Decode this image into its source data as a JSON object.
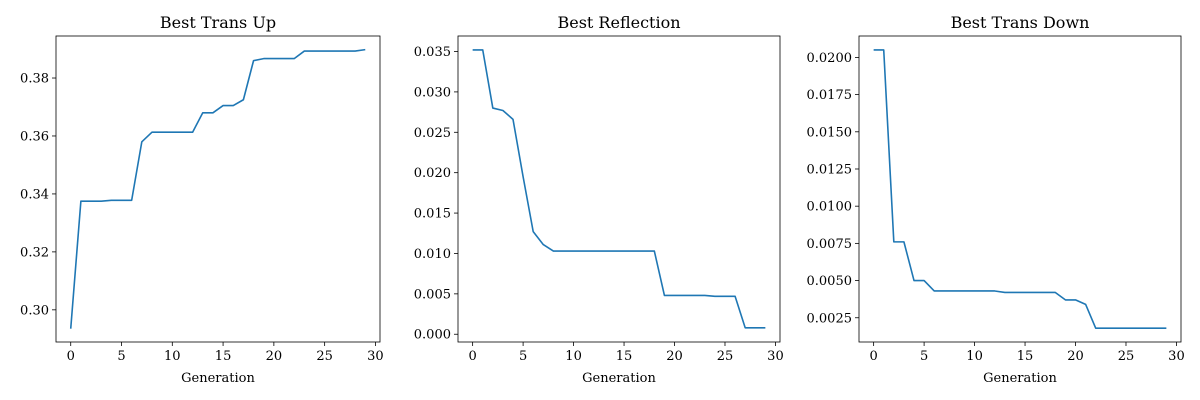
{
  "chart_data": [
    {
      "type": "line",
      "title": "Best Trans Up",
      "xlabel": "Generation",
      "ylabel": "",
      "xlim": [
        -1.45,
        30.45
      ],
      "ylim": [
        0.2889,
        0.3945
      ],
      "xticks": [
        0,
        5,
        10,
        15,
        20,
        25,
        30
      ],
      "xtick_labels": [
        "0",
        "5",
        "10",
        "15",
        "20",
        "25",
        "30"
      ],
      "yticks": [
        0.3,
        0.32,
        0.34,
        0.36,
        0.38
      ],
      "ytick_labels": [
        "0.30",
        "0.32",
        "0.34",
        "0.36",
        "0.38"
      ],
      "grid": false,
      "color": "#1f77b4",
      "series": [
        {
          "x": [
            0,
            1,
            2,
            3,
            4,
            5,
            6,
            7,
            8,
            9,
            10,
            11,
            12,
            13,
            14,
            15,
            16,
            17,
            18,
            19,
            20,
            21,
            22,
            23,
            24,
            25,
            26,
            27,
            28,
            29
          ],
          "values": [
            0.2935,
            0.3375,
            0.3375,
            0.3375,
            0.3378,
            0.3378,
            0.3378,
            0.358,
            0.3613,
            0.3613,
            0.3613,
            0.3613,
            0.3613,
            0.368,
            0.368,
            0.3705,
            0.3705,
            0.3725,
            0.386,
            0.3867,
            0.3867,
            0.3867,
            0.3867,
            0.3893,
            0.3893,
            0.3893,
            0.3893,
            0.3893,
            0.3893,
            0.3898
          ]
        }
      ]
    },
    {
      "type": "line",
      "title": "Best Reflection",
      "xlabel": "Generation",
      "ylabel": "",
      "xlim": [
        -1.45,
        30.45
      ],
      "ylim": [
        -0.00096,
        0.03692
      ],
      "xticks": [
        0,
        5,
        10,
        15,
        20,
        25,
        30
      ],
      "xtick_labels": [
        "0",
        "5",
        "10",
        "15",
        "20",
        "25",
        "30"
      ],
      "yticks": [
        0.0,
        0.005,
        0.01,
        0.015,
        0.02,
        0.025,
        0.03,
        0.035
      ],
      "ytick_labels": [
        "0.000",
        "0.005",
        "0.010",
        "0.015",
        "0.020",
        "0.025",
        "0.030",
        "0.035"
      ],
      "grid": false,
      "color": "#1f77b4",
      "series": [
        {
          "x": [
            0,
            1,
            2,
            3,
            4,
            5,
            6,
            7,
            8,
            9,
            10,
            11,
            12,
            13,
            14,
            15,
            16,
            17,
            18,
            19,
            20,
            21,
            22,
            23,
            24,
            25,
            26,
            27,
            28,
            29
          ],
          "values": [
            0.0352,
            0.0352,
            0.028,
            0.0277,
            0.0266,
            0.0195,
            0.0127,
            0.0111,
            0.0103,
            0.0103,
            0.0103,
            0.0103,
            0.0103,
            0.0103,
            0.0103,
            0.0103,
            0.0103,
            0.0103,
            0.0103,
            0.0048,
            0.0048,
            0.0048,
            0.0048,
            0.0048,
            0.0047,
            0.0047,
            0.0047,
            0.0008,
            0.0008,
            0.0008
          ]
        }
      ]
    },
    {
      "type": "line",
      "title": "Best Trans Down",
      "xlabel": "Generation",
      "ylabel": "",
      "xlim": [
        -1.45,
        30.45
      ],
      "ylim": [
        0.00087,
        0.02144
      ],
      "xticks": [
        0,
        5,
        10,
        15,
        20,
        25,
        30
      ],
      "xtick_labels": [
        "0",
        "5",
        "10",
        "15",
        "20",
        "25",
        "30"
      ],
      "yticks": [
        0.0025,
        0.005,
        0.0075,
        0.01,
        0.0125,
        0.015,
        0.0175,
        0.02
      ],
      "ytick_labels": [
        "0.0025",
        "0.0050",
        "0.0075",
        "0.0100",
        "0.0125",
        "0.0150",
        "0.0175",
        "0.0200"
      ],
      "grid": false,
      "color": "#1f77b4",
      "series": [
        {
          "x": [
            0,
            1,
            2,
            3,
            4,
            5,
            6,
            7,
            8,
            9,
            10,
            11,
            12,
            13,
            14,
            15,
            16,
            17,
            18,
            19,
            20,
            21,
            22,
            23,
            24,
            25,
            26,
            27,
            28,
            29
          ],
          "values": [
            0.0205,
            0.0205,
            0.0076,
            0.0076,
            0.005,
            0.005,
            0.0043,
            0.0043,
            0.0043,
            0.0043,
            0.0043,
            0.0043,
            0.0043,
            0.0042,
            0.0042,
            0.0042,
            0.0042,
            0.0042,
            0.0042,
            0.0037,
            0.0037,
            0.0034,
            0.0018,
            0.0018,
            0.0018,
            0.0018,
            0.0018,
            0.0018,
            0.0018,
            0.0018
          ]
        }
      ]
    }
  ]
}
